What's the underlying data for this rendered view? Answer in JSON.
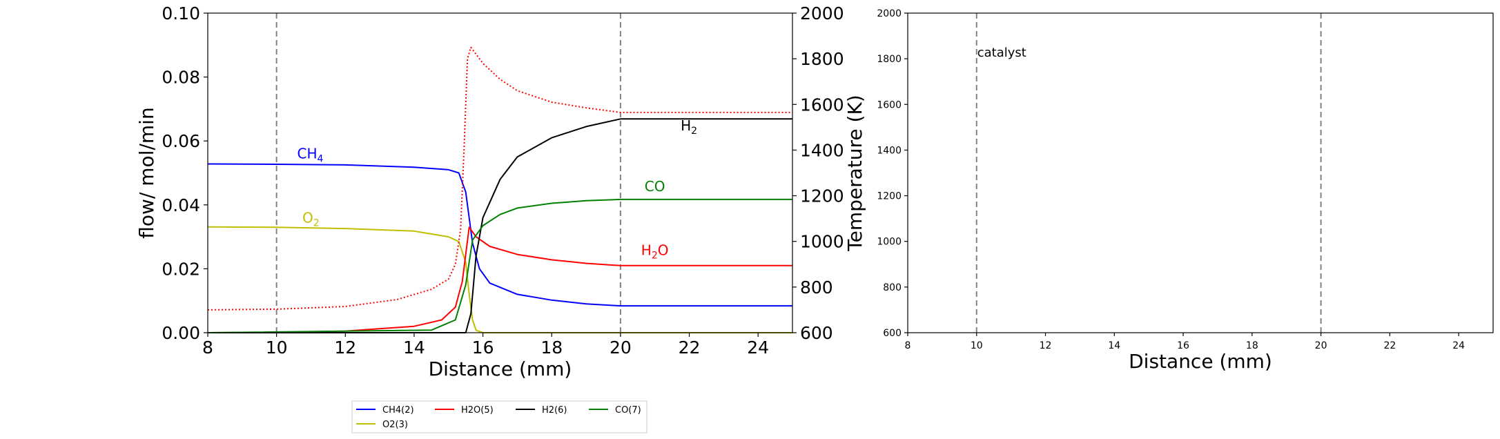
{
  "chart_data": [
    {
      "type": "line",
      "xlabel": "Distance (mm)",
      "ylabel": "flow/ mol/min",
      "y2label": "Temperature (K)",
      "xlim": [
        8,
        25
      ],
      "ylim": [
        0,
        0.1
      ],
      "y2lim": [
        600,
        2000
      ],
      "xticks": [
        "8",
        "10",
        "12",
        "14",
        "16",
        "18",
        "20",
        "22",
        "24"
      ],
      "yticks": [
        "0.00",
        "0.02",
        "0.04",
        "0.06",
        "0.08",
        "0.10"
      ],
      "y2ticks": [
        "600",
        "800",
        "1000",
        "1200",
        "1400",
        "1600",
        "1800",
        "2000"
      ],
      "vlines": [
        10,
        20
      ],
      "series": [
        {
          "name": "CH4(2)",
          "color": "#0000ff",
          "axis": "left",
          "points": [
            [
              8,
              0.0528
            ],
            [
              10,
              0.0527
            ],
            [
              12,
              0.0525
            ],
            [
              14,
              0.0518
            ],
            [
              15,
              0.051
            ],
            [
              15.3,
              0.05
            ],
            [
              15.5,
              0.044
            ],
            [
              15.7,
              0.028
            ],
            [
              15.9,
              0.02
            ],
            [
              16.2,
              0.0155
            ],
            [
              17,
              0.012
            ],
            [
              18,
              0.0102
            ],
            [
              19,
              0.009
            ],
            [
              20,
              0.0084
            ],
            [
              22,
              0.0084
            ],
            [
              25,
              0.0084
            ]
          ]
        },
        {
          "name": "O2(3)",
          "color": "#bfbf00",
          "axis": "left",
          "points": [
            [
              8,
              0.0331
            ],
            [
              10,
              0.033
            ],
            [
              12,
              0.0326
            ],
            [
              14,
              0.0318
            ],
            [
              15,
              0.03
            ],
            [
              15.3,
              0.0285
            ],
            [
              15.5,
              0.022
            ],
            [
              15.6,
              0.012
            ],
            [
              15.7,
              0.004
            ],
            [
              15.8,
              0.0008
            ],
            [
              16,
              0
            ],
            [
              25,
              0
            ]
          ]
        },
        {
          "name": "H2O(5)",
          "color": "#ff0000",
          "axis": "left",
          "points": [
            [
              8,
              0
            ],
            [
              10,
              0.0001
            ],
            [
              12,
              0.0005
            ],
            [
              14,
              0.002
            ],
            [
              14.8,
              0.004
            ],
            [
              15.2,
              0.008
            ],
            [
              15.4,
              0.016
            ],
            [
              15.6,
              0.033
            ],
            [
              15.8,
              0.03
            ],
            [
              16.2,
              0.027
            ],
            [
              17,
              0.0245
            ],
            [
              18,
              0.0228
            ],
            [
              19,
              0.0217
            ],
            [
              20,
              0.021
            ],
            [
              25,
              0.021
            ]
          ]
        },
        {
          "name": "H2(6)",
          "color": "#000000",
          "axis": "left",
          "points": [
            [
              8,
              0
            ],
            [
              15.5,
              0
            ],
            [
              15.65,
              0.006
            ],
            [
              15.8,
              0.024
            ],
            [
              16,
              0.036
            ],
            [
              16.5,
              0.048
            ],
            [
              17,
              0.055
            ],
            [
              18,
              0.061
            ],
            [
              19,
              0.0645
            ],
            [
              20,
              0.0669
            ],
            [
              25,
              0.0669
            ]
          ]
        },
        {
          "name": "CO(7)",
          "color": "#008000",
          "axis": "left",
          "points": [
            [
              8,
              0
            ],
            [
              14.5,
              0.0008
            ],
            [
              15.2,
              0.004
            ],
            [
              15.5,
              0.015
            ],
            [
              15.7,
              0.029
            ],
            [
              16,
              0.0335
            ],
            [
              16.5,
              0.037
            ],
            [
              17,
              0.039
            ],
            [
              18,
              0.0405
            ],
            [
              19,
              0.0413
            ],
            [
              20,
              0.0417
            ],
            [
              25,
              0.0417
            ]
          ]
        },
        {
          "name": "",
          "color": "#ff0000",
          "axis": "right",
          "dashed": true,
          "points": [
            [
              8,
              700
            ],
            [
              10,
              703
            ],
            [
              12,
              715
            ],
            [
              13.5,
              745
            ],
            [
              14.5,
              790
            ],
            [
              15,
              835
            ],
            [
              15.2,
              900
            ],
            [
              15.35,
              1050
            ],
            [
              15.45,
              1400
            ],
            [
              15.55,
              1800
            ],
            [
              15.65,
              1850
            ],
            [
              16,
              1780
            ],
            [
              16.5,
              1710
            ],
            [
              17,
              1660
            ],
            [
              18,
              1610
            ],
            [
              19,
              1585
            ],
            [
              20,
              1565
            ],
            [
              25,
              1565
            ]
          ]
        }
      ],
      "labels": [
        {
          "text": "CH",
          "sub": "4",
          "x": 10.6,
          "y": 0.0545,
          "color": "#0000ff"
        },
        {
          "text": "O",
          "sub": "2",
          "x": 10.75,
          "y": 0.0345,
          "color": "#bfbf00"
        },
        {
          "text": "H",
          "sub": "2",
          "after": "O",
          "x": 20.6,
          "y": 0.0243,
          "color": "#ff0000"
        },
        {
          "text": "CO",
          "x": 20.7,
          "y": 0.0443,
          "color": "#008000"
        },
        {
          "text": "H",
          "sub": "2",
          "x": 21.75,
          "y": 0.0633,
          "color": "#000000"
        }
      ],
      "legend": {
        "position": "bottom-left",
        "entries": [
          "CH4(2)",
          "O2(3)",
          "H2O(5)",
          "H2(6)",
          "CO(7)"
        ]
      }
    },
    {
      "type": "line",
      "xlabel": "Distance (mm)",
      "xlim": [
        8,
        25
      ],
      "ylim": [
        600,
        2000
      ],
      "xticks": [
        "8",
        "10",
        "12",
        "14",
        "16",
        "18",
        "20",
        "22",
        "24"
      ],
      "yticks": [
        "600",
        "800",
        "1000",
        "1200",
        "1400",
        "1600",
        "1800",
        "2000"
      ],
      "vlines": [
        10,
        20
      ],
      "annotation": "catalyst",
      "series": []
    }
  ]
}
